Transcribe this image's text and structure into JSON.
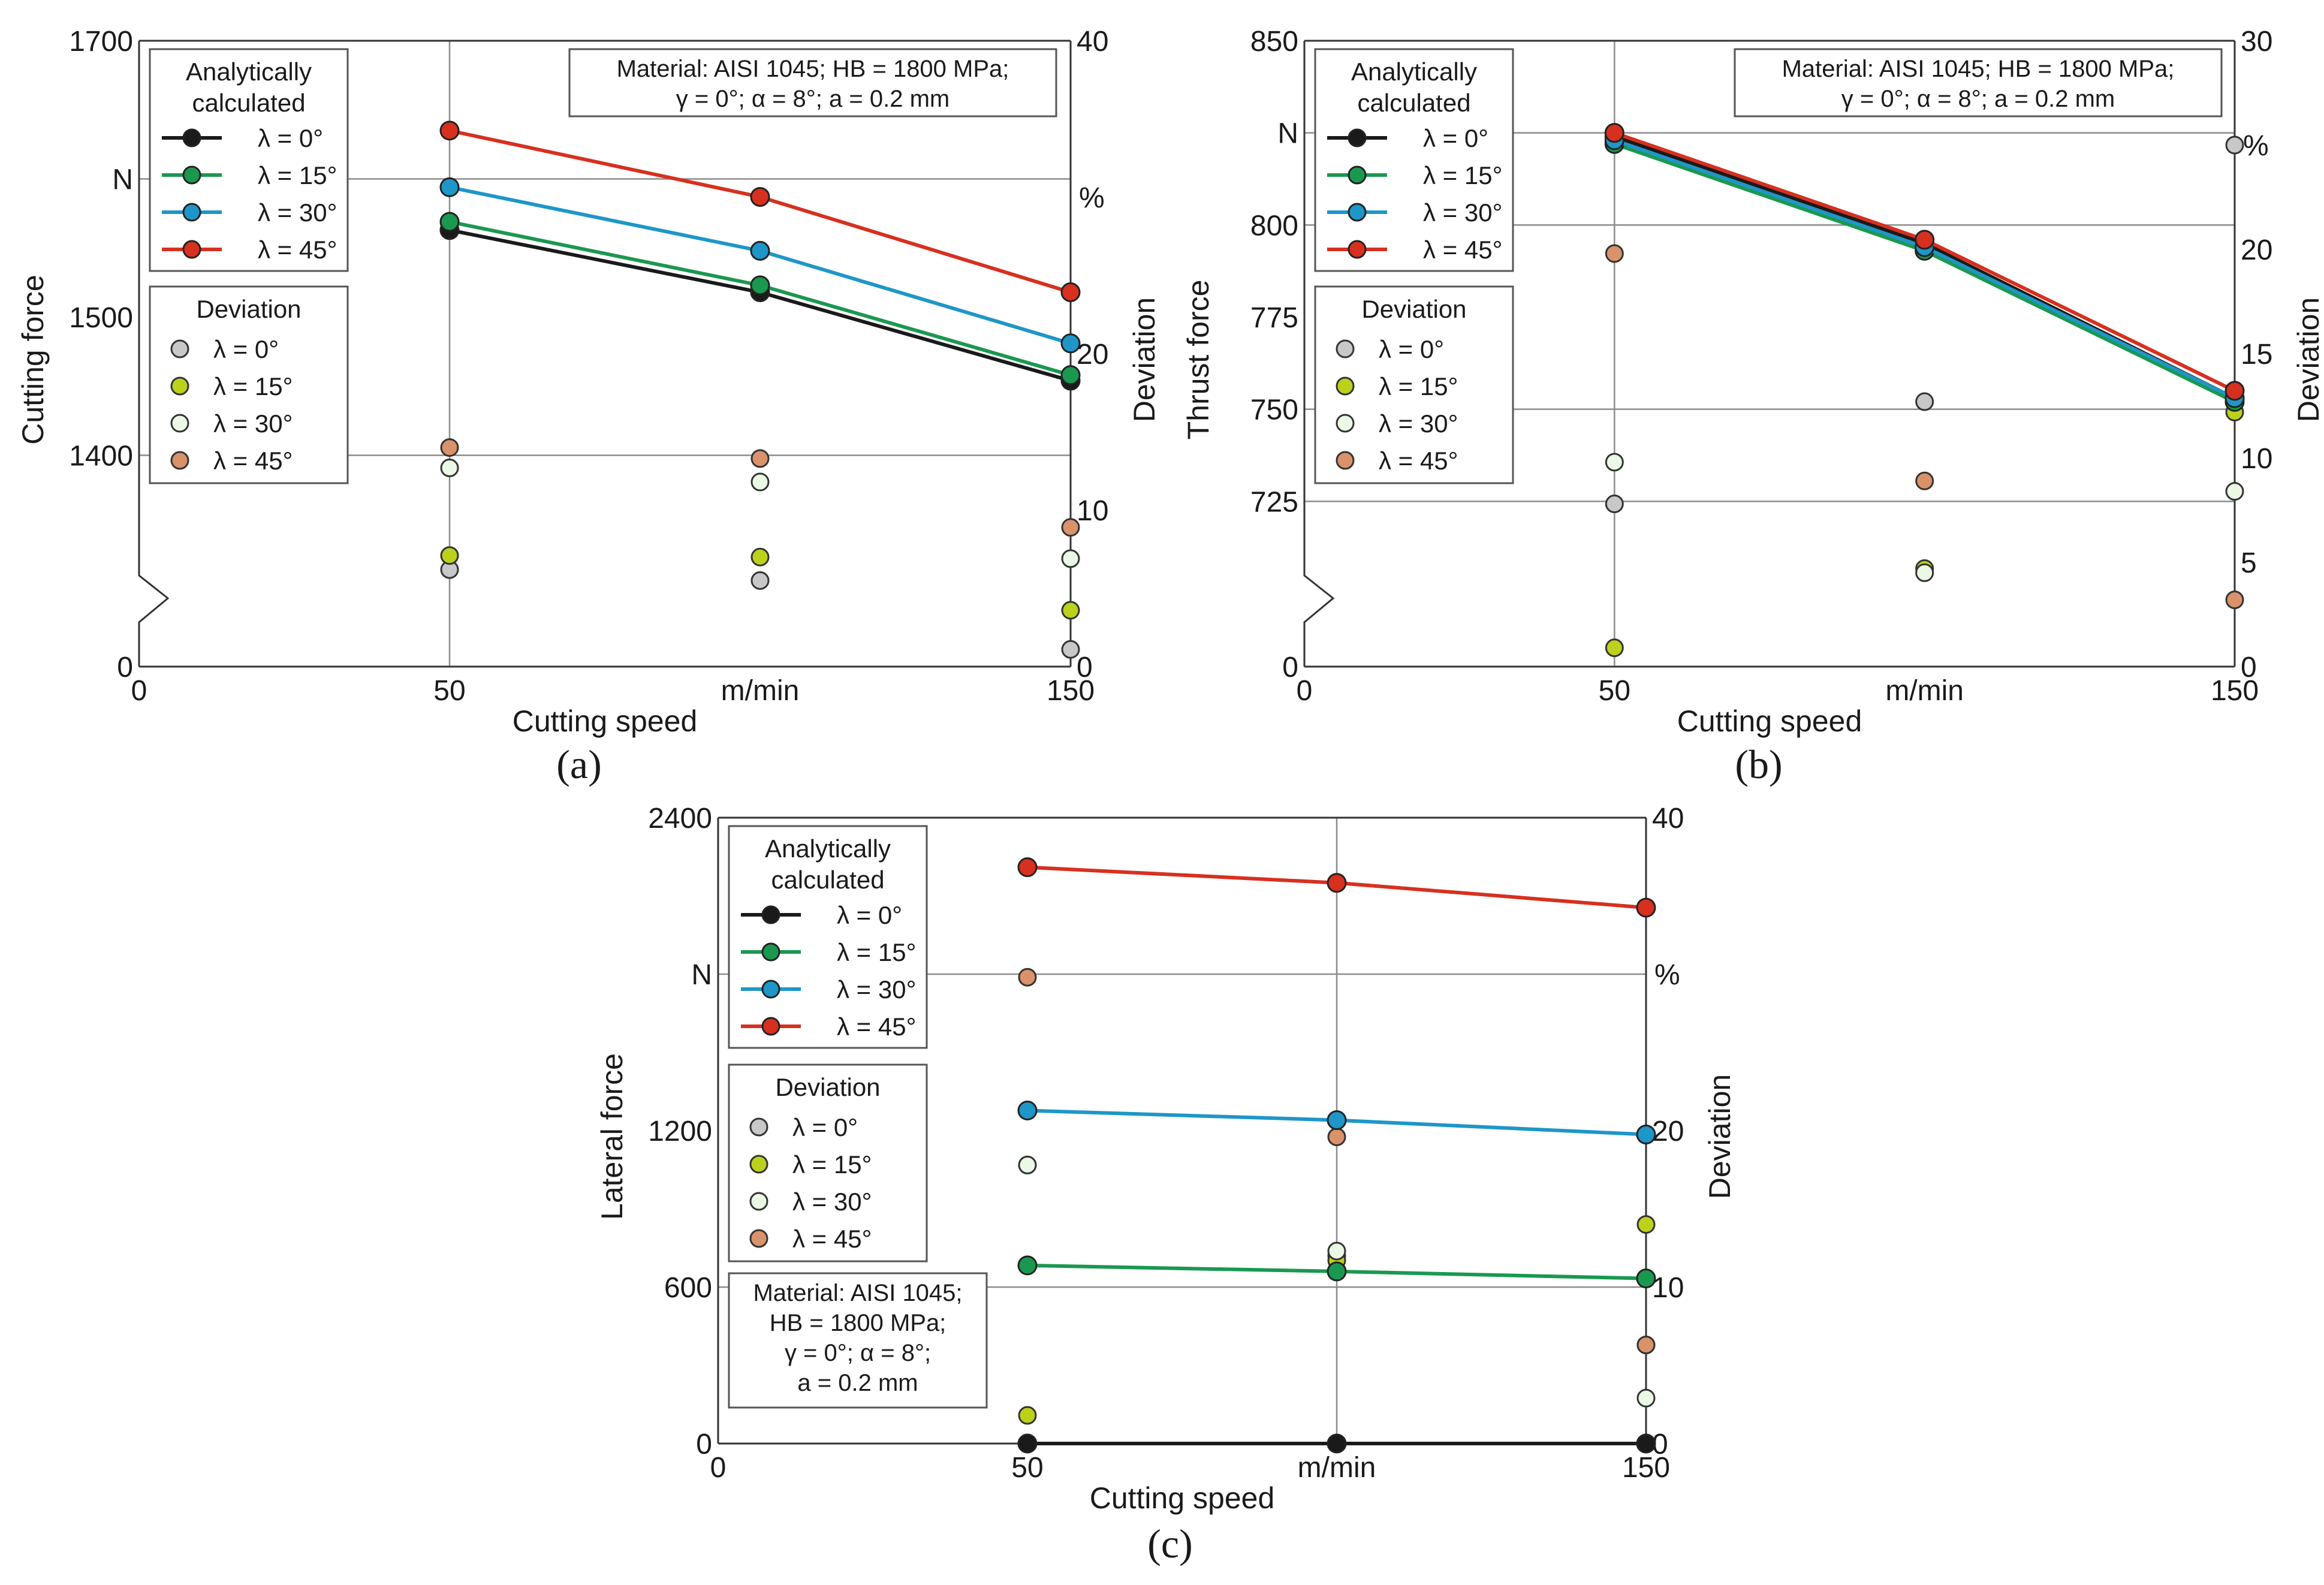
{
  "panel_labels": [
    "(a)",
    "(b)",
    "(c)"
  ],
  "legend": {
    "analytic_title": [
      "Analytically",
      "calculated"
    ],
    "deviation_title": "Deviation",
    "entries": [
      "λ = 0°",
      "λ = 15°",
      "λ = 30°",
      "λ = 45°"
    ],
    "line_colors": [
      "#1a1a1a",
      "#1a9850",
      "#1e96c8",
      "#d7301f"
    ],
    "dev_colors": [
      "#c8c8c8",
      "#bcd21a",
      "#ecf8e6",
      "#d9926a"
    ]
  },
  "material_info": {
    "single_line": [
      "Material: AISI 1045; HB = 1800 MPa;",
      "γ = 0°; α = 8°; a = 0.2 mm"
    ],
    "multi_line": [
      "Material: AISI 1045;",
      "HB = 1800 MPa;",
      "γ = 0°; α = 8°;",
      "a = 0.2 mm"
    ]
  },
  "chart_data": [
    {
      "id": "a",
      "type": "line",
      "title": "",
      "xlabel": "Cutting speed",
      "x_unit": "m/min",
      "ylabel": "Cutting force",
      "y_unit": "N",
      "y2label": "Deviation",
      "y2_unit": "%",
      "xlim": [
        0,
        150
      ],
      "x_ticks": [
        "0",
        "50",
        "150"
      ],
      "ylim": [
        1300,
        1700
      ],
      "y_ticks": [
        "1400",
        "1500",
        "1700"
      ],
      "y_zero_label": "0",
      "y2lim": [
        0,
        40
      ],
      "y2_ticks": [
        "0",
        "10",
        "20",
        "40"
      ],
      "x": [
        50,
        100,
        150
      ],
      "series": [
        {
          "name": "λ = 0°",
          "values": [
            1563,
            1518,
            1454
          ]
        },
        {
          "name": "λ = 15°",
          "values": [
            1569,
            1523,
            1458
          ]
        },
        {
          "name": "λ = 30°",
          "values": [
            1594,
            1548,
            1481
          ]
        },
        {
          "name": "λ = 45°",
          "values": [
            1635,
            1587,
            1518
          ]
        }
      ],
      "deviation_series": [
        {
          "name": "λ = 0°",
          "values": [
            6.2,
            5.5,
            1.1
          ]
        },
        {
          "name": "λ = 15°",
          "values": [
            7.1,
            7.0,
            3.6
          ]
        },
        {
          "name": "λ = 30°",
          "values": [
            12.7,
            11.8,
            6.9
          ]
        },
        {
          "name": "λ = 45°",
          "values": [
            14.0,
            13.3,
            8.9
          ]
        }
      ]
    },
    {
      "id": "b",
      "type": "line",
      "title": "",
      "xlabel": "Cutting speed",
      "x_unit": "m/min",
      "ylabel": "Thrust force",
      "y_unit": "N",
      "y2label": "Deviation",
      "y2_unit": "%",
      "xlim": [
        0,
        150
      ],
      "x_ticks": [
        "0",
        "50",
        "150"
      ],
      "ylim": [
        700,
        850
      ],
      "y_ticks": [
        "725",
        "750",
        "775",
        "800",
        "850"
      ],
      "y_zero_label": "0",
      "y2lim": [
        0,
        30
      ],
      "y2_ticks": [
        "0",
        "5",
        "10",
        "15",
        "20",
        "30"
      ],
      "x": [
        50,
        100,
        150
      ],
      "series": [
        {
          "name": "λ = 0°",
          "values": [
            824,
            795,
            753
          ]
        },
        {
          "name": "λ = 15°",
          "values": [
            822,
            793,
            752
          ]
        },
        {
          "name": "λ = 30°",
          "values": [
            823,
            794,
            753
          ]
        },
        {
          "name": "λ = 45°",
          "values": [
            825,
            796,
            755
          ]
        }
      ],
      "deviation_series": [
        {
          "name": "λ = 0°",
          "values": [
            7.8,
            12.7,
            25.0
          ]
        },
        {
          "name": "λ = 15°",
          "values": [
            0.9,
            4.7,
            12.2
          ]
        },
        {
          "name": "λ = 30°",
          "values": [
            9.8,
            4.5,
            8.4
          ]
        },
        {
          "name": "λ = 45°",
          "values": [
            19.8,
            8.9,
            3.2
          ]
        }
      ]
    },
    {
      "id": "c",
      "type": "line",
      "title": "",
      "xlabel": "Cutting speed",
      "x_unit": "m/min",
      "ylabel": "Lateral force",
      "y_unit": "N",
      "y2label": "Deviation",
      "y2_unit": "%",
      "xlim": [
        0,
        150
      ],
      "x_ticks": [
        "0",
        "50",
        "150"
      ],
      "ylim": [
        0,
        2400
      ],
      "y_ticks": [
        "0",
        "600",
        "1200",
        "2400"
      ],
      "y2lim": [
        0,
        40
      ],
      "y2_ticks": [
        "0",
        "10",
        "20",
        "40"
      ],
      "x": [
        50,
        100,
        150
      ],
      "series": [
        {
          "name": "λ = 0°",
          "values": [
            0,
            0,
            0
          ]
        },
        {
          "name": "λ = 15°",
          "values": [
            683,
            660,
            633
          ]
        },
        {
          "name": "λ = 30°",
          "values": [
            1277,
            1240,
            1185
          ]
        },
        {
          "name": "λ = 45°",
          "values": [
            2210,
            2150,
            2055
          ]
        }
      ],
      "deviation_series": [
        {
          "name": "λ = 0°",
          "values": [
            17.8,
            12.0,
            6.3
          ]
        },
        {
          "name": "λ = 15°",
          "values": [
            1.8,
            11.7,
            14.0
          ]
        },
        {
          "name": "λ = 30°",
          "values": [
            17.8,
            12.3,
            2.9
          ]
        },
        {
          "name": "λ = 45°",
          "values": [
            29.8,
            19.6,
            6.3
          ]
        }
      ]
    }
  ]
}
